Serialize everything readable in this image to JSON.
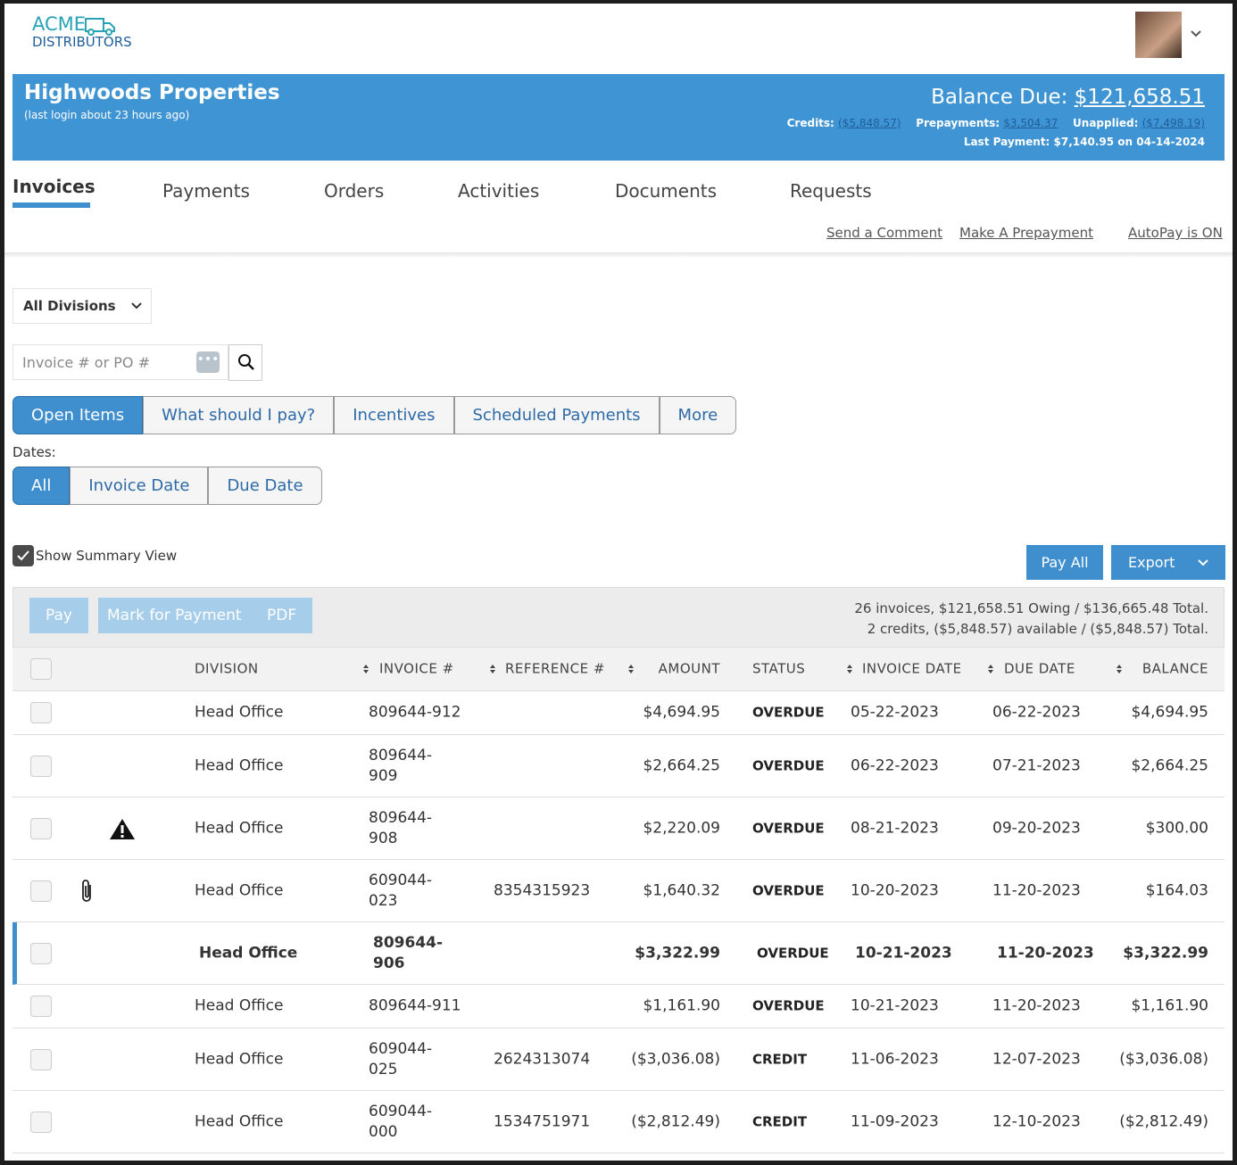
{
  "header": {
    "logo_top": "ACME",
    "logo_bottom": "DISTRIBUTORS"
  },
  "account": {
    "name": "Highwoods Properties",
    "last_login": "(last login about 23 hours ago)",
    "balance_label": "Balance Due:",
    "balance": "$121,658.51",
    "credits_label": "Credits:",
    "credits": "($5,848.57)",
    "prepayments_label": "Prepayments:",
    "prepayments": "$3,504.37",
    "unapplied_label": "Unapplied:",
    "unapplied": "($7,498.19)",
    "last_payment": "Last Payment: $7,140.95 on 04-14-2024"
  },
  "tabs": [
    "Invoices",
    "Payments",
    "Orders",
    "Activities",
    "Documents",
    "Requests"
  ],
  "links": [
    "Send a Comment",
    "Make A Prepayment",
    "AutoPay is ON"
  ],
  "filters": {
    "division": "All Divisions",
    "search_placeholder": "Invoice # or PO #",
    "views": [
      "Open Items",
      "What should I pay?",
      "Incentives",
      "Scheduled Payments",
      "More"
    ],
    "dates_label": "Dates:",
    "dates": [
      "All",
      "Invoice Date",
      "Due Date"
    ],
    "summary_view": "Show Summary View"
  },
  "actions": {
    "pay_all": "Pay All",
    "export": "Export",
    "pay": "Pay",
    "mark": "Mark for Payment",
    "pdf": "PDF",
    "summary_1": "26 invoices, $121,658.51 Owing / $136,665.48 Total.",
    "summary_2": "2 credits, ($5,848.57) available / ($5,848.57) Total."
  },
  "table": {
    "columns": [
      "DIVISION",
      "INVOICE #",
      "REFERENCE #",
      "AMOUNT",
      "STATUS",
      "INVOICE DATE",
      "DUE DATE",
      "BALANCE"
    ],
    "rows": [
      [
        "Head Office",
        "809644-912",
        "",
        "$4,694.95",
        "OVERDUE",
        "05-22-2023",
        "06-22-2023",
        "$4,694.95"
      ],
      [
        "Head Office",
        "809644-909",
        "",
        "$2,664.25",
        "OVERDUE",
        "06-22-2023",
        "07-21-2023",
        "$2,664.25"
      ],
      [
        "Head Office",
        "809644-908",
        "",
        "$2,220.09",
        "OVERDUE",
        "08-21-2023",
        "09-20-2023",
        "$300.00"
      ],
      [
        "Head Office",
        "609044-023",
        "8354315923",
        "$1,640.32",
        "OVERDUE",
        "10-20-2023",
        "11-20-2023",
        "$164.03"
      ],
      [
        "Head Office",
        "809644-906",
        "",
        "$3,322.99",
        "OVERDUE",
        "10-21-2023",
        "11-20-2023",
        "$3,322.99"
      ],
      [
        "Head Office",
        "809644-911",
        "",
        "$1,161.90",
        "OVERDUE",
        "10-21-2023",
        "11-20-2023",
        "$1,161.90"
      ],
      [
        "Head Office",
        "609044-025",
        "2624313074",
        "($3,036.08)",
        "CREDIT",
        "11-06-2023",
        "12-07-2023",
        "($3,036.08)"
      ],
      [
        "Head Office",
        "609044-000",
        "1534751971",
        "($2,812.49)",
        "CREDIT",
        "11-09-2023",
        "12-10-2023",
        "($2,812.49)"
      ]
    ]
  }
}
